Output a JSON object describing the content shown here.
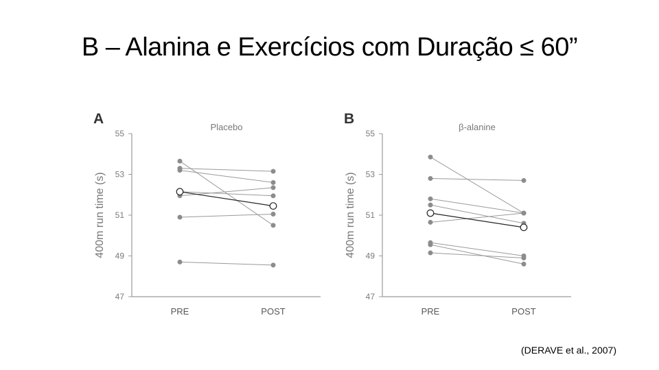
{
  "slide": {
    "title": "B – Alanina e Exercícios com Duração ≤ 60”",
    "citation": "(DERAVE et al., 2007)"
  },
  "colors": {
    "individual": "#999999",
    "individual_marker": "#8c8c8c",
    "mean_line": "#222222",
    "axis": "#9a9a9a"
  },
  "chart_data": [
    {
      "type": "line",
      "panel_letter": "A",
      "title": "Placebo",
      "ylabel": "400m run time (s)",
      "xlabel": "",
      "categories": [
        "PRE",
        "POST"
      ],
      "ylim": [
        47,
        55
      ],
      "yticks": [
        "55",
        "53",
        "51",
        "49",
        "47"
      ],
      "series": [
        {
          "name": "subject-1",
          "values": [
            53.65,
            50.5
          ]
        },
        {
          "name": "subject-2",
          "values": [
            53.3,
            53.15
          ]
        },
        {
          "name": "subject-3",
          "values": [
            53.2,
            52.6
          ]
        },
        {
          "name": "subject-4",
          "values": [
            51.95,
            52.35
          ]
        },
        {
          "name": "subject-5",
          "values": [
            52.15,
            51.95
          ]
        },
        {
          "name": "subject-6",
          "values": [
            50.9,
            51.05
          ]
        },
        {
          "name": "subject-7",
          "values": [
            48.7,
            48.55
          ]
        }
      ],
      "mean": {
        "name": "mean",
        "values": [
          52.15,
          51.45
        ]
      }
    },
    {
      "type": "line",
      "panel_letter": "B",
      "title": "β-alanine",
      "ylabel": "400m run time (s)",
      "xlabel": "",
      "categories": [
        "PRE",
        "POST"
      ],
      "ylim": [
        47,
        55
      ],
      "yticks": [
        "55",
        "53",
        "51",
        "49",
        "47"
      ],
      "series": [
        {
          "name": "subject-1",
          "values": [
            53.85,
            51.1
          ]
        },
        {
          "name": "subject-2",
          "values": [
            52.8,
            52.7
          ]
        },
        {
          "name": "subject-3",
          "values": [
            51.8,
            51.1
          ]
        },
        {
          "name": "subject-4",
          "values": [
            51.5,
            50.6
          ]
        },
        {
          "name": "subject-5",
          "values": [
            50.65,
            51.1
          ]
        },
        {
          "name": "subject-6",
          "values": [
            49.65,
            49.0
          ]
        },
        {
          "name": "subject-7",
          "values": [
            49.55,
            48.6
          ]
        },
        {
          "name": "subject-8",
          "values": [
            49.15,
            48.9
          ]
        }
      ],
      "mean": {
        "name": "mean",
        "values": [
          51.1,
          50.4
        ]
      }
    }
  ]
}
